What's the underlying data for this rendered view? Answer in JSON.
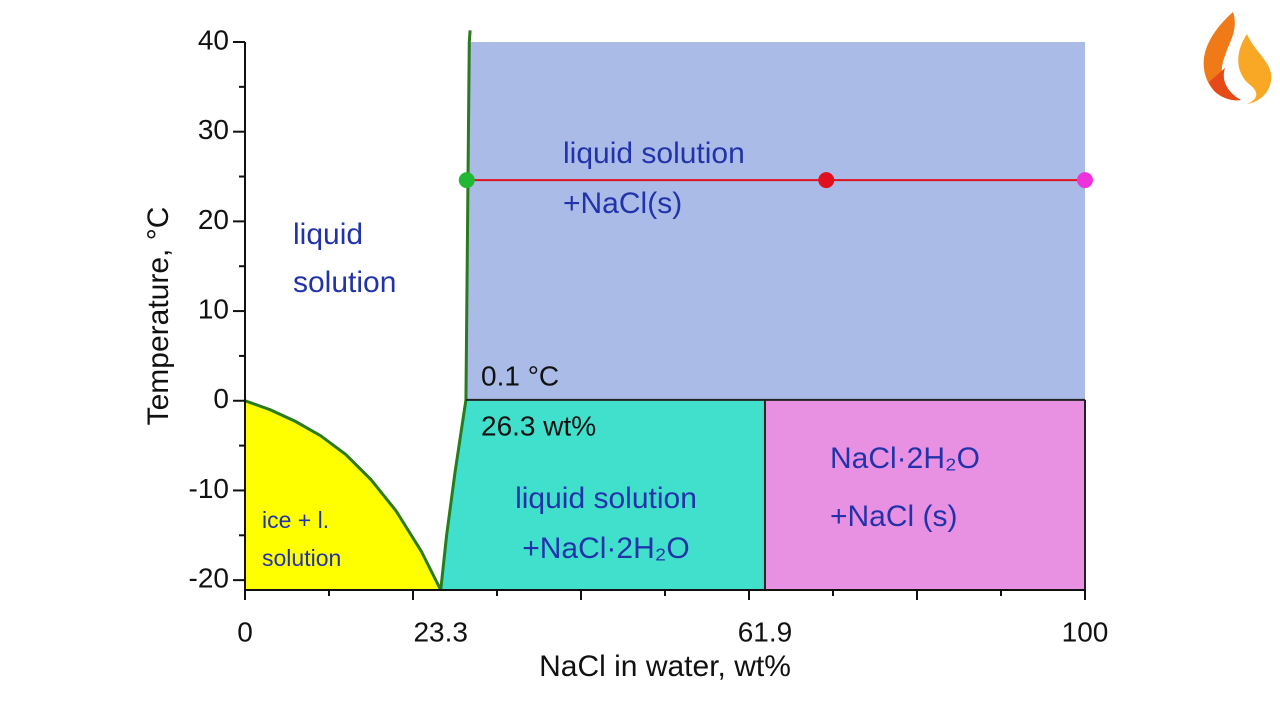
{
  "chart_data": {
    "type": "phase-diagram",
    "x_label": "NaCl in water, wt%",
    "y_label": "Temperature, °C",
    "xlim": [
      0,
      100
    ],
    "ylim": [
      -21.1,
      40
    ],
    "xticks": [
      0,
      23.3,
      61.9,
      100
    ],
    "xtick_marks": [
      0,
      10,
      20,
      30,
      40,
      50,
      60,
      70,
      80,
      90,
      100
    ],
    "yticks": [
      -20,
      -10,
      0,
      10,
      20,
      30,
      40
    ],
    "ytick_marks": [
      -15,
      -5,
      5,
      15,
      25,
      35
    ],
    "regions": [
      {
        "label": [
          "liquid",
          "solution"
        ],
        "color": "#ffffff",
        "x": [
          0,
          0,
          26.7,
          26.3,
          23.3,
          0
        ],
        "y": [
          0,
          40,
          40,
          0.1,
          -21.1,
          0
        ]
      },
      {
        "label": [
          "liquid solution",
          "+NaCl(s)"
        ],
        "color": "#aabbe8",
        "x": [
          26.3,
          26.7,
          100,
          100
        ],
        "y": [
          0.1,
          40,
          40,
          0.1
        ]
      },
      {
        "label": [
          "liquid solution",
          "+NaCl·2H₂O"
        ],
        "color": "#40e0cc",
        "x": [
          23.3,
          24.0,
          25.0,
          25.8,
          26.3,
          61.9,
          61.9
        ],
        "y": [
          -21.1,
          -15,
          -8,
          -3,
          0.1,
          0.1,
          -21.1
        ]
      },
      {
        "label": [
          "NaCl·2H₂O",
          "+NaCl (s)"
        ],
        "color": "#e891e3",
        "x": [
          61.9,
          61.9,
          100,
          100
        ],
        "y": [
          -21.1,
          0.1,
          0.1,
          -21.1
        ]
      },
      {
        "label": [
          "ice + l.",
          "solution"
        ],
        "color": "#ffff00",
        "x": [
          0,
          3,
          6,
          9,
          12,
          15,
          18,
          21,
          23.3,
          0
        ],
        "y": [
          0,
          -1.0,
          -2.3,
          -3.9,
          -6.0,
          -8.8,
          -12.3,
          -16.8,
          -21.1,
          -21.1
        ]
      }
    ],
    "boundaries": [
      {
        "color": "#2a7a1e",
        "x": [
          0,
          3,
          6,
          9,
          12,
          15,
          18,
          21,
          23.3
        ],
        "y": [
          0,
          -1.0,
          -2.3,
          -3.9,
          -6.0,
          -8.8,
          -12.3,
          -16.8,
          -21.1
        ]
      },
      {
        "color": "#2a7a1e",
        "x": [
          23.3,
          24.0,
          25.0,
          25.8,
          26.3,
          26.4,
          26.5,
          26.6,
          26.7,
          26.8
        ],
        "y": [
          -21.1,
          -15,
          -8,
          -3,
          0.1,
          10,
          20,
          30,
          40,
          41.3
        ]
      },
      {
        "color": "#222222",
        "x": [
          26.3,
          100
        ],
        "y": [
          0.1,
          0.1
        ]
      },
      {
        "color": "#222222",
        "x": [
          61.9,
          61.9
        ],
        "y": [
          -21.1,
          0.1
        ]
      },
      {
        "color": "#222222",
        "x": [
          100,
          100
        ],
        "y": [
          -21.1,
          0.1
        ]
      }
    ],
    "tie_line": {
      "color": "#e0101e",
      "x": [
        26.4,
        100
      ],
      "y": [
        24.6,
        24.6
      ]
    },
    "points": [
      {
        "x": 26.4,
        "y": 24.6,
        "color": "#22b833"
      },
      {
        "x": 69.2,
        "y": 24.6,
        "color": "#e0101e"
      },
      {
        "x": 100,
        "y": 24.6,
        "color": "#ee33dd"
      }
    ],
    "annotations": [
      "0.1 °C",
      "26.3 wt%"
    ]
  }
}
